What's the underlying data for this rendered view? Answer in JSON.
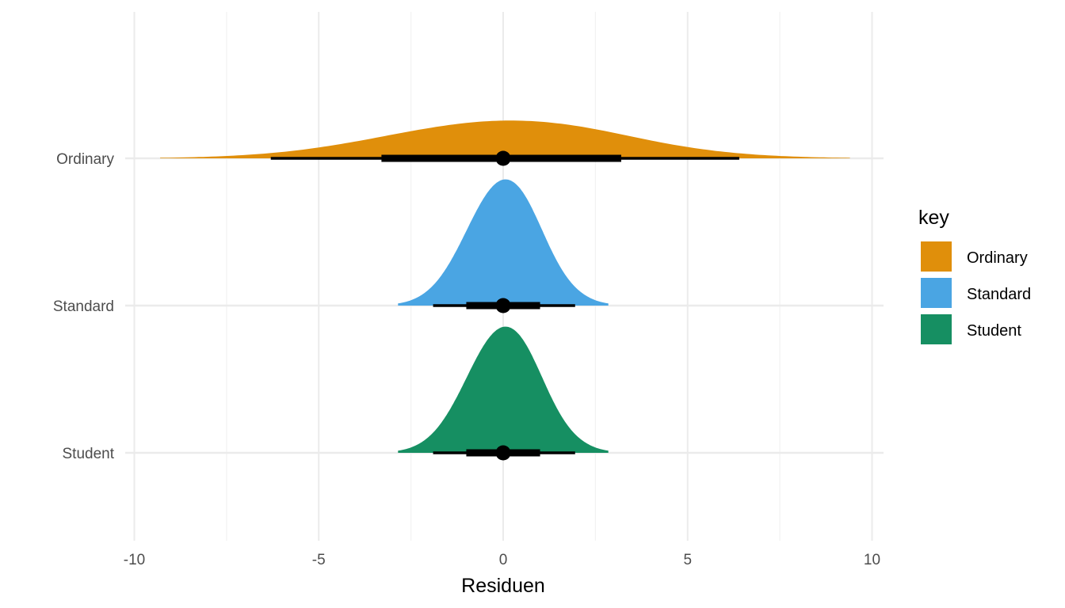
{
  "chart_data": {
    "type": "halfeye",
    "xlabel": "Residuen",
    "ylabel": "",
    "xlim": [
      -10.3,
      10.6
    ],
    "x_ticks": [
      -10,
      -5,
      0,
      5,
      10
    ],
    "x_tick_labels": [
      "-10",
      "-5",
      "0",
      "5",
      "10"
    ],
    "categories": [
      "Ordinary",
      "Standard",
      "Student"
    ],
    "grid": true,
    "legend": {
      "title": "key",
      "position": "right",
      "entries": [
        "Ordinary",
        "Standard",
        "Student"
      ]
    },
    "series": [
      {
        "name": "Ordinary",
        "color": "#E08F0B",
        "point": 0.0,
        "interval_66": [
          -3.3,
          3.2
        ],
        "interval_95": [
          -6.3,
          6.4
        ],
        "density_range": [
          -9.3,
          9.4
        ],
        "density_sd": 3.2
      },
      {
        "name": "Standard",
        "color": "#4AA5E3",
        "point": 0.0,
        "interval_66": [
          -1.0,
          1.0
        ],
        "interval_95": [
          -1.9,
          1.95
        ],
        "density_range": [
          -2.85,
          2.85
        ],
        "density_sd": 1.0
      },
      {
        "name": "Student",
        "color": "#168F62",
        "point": 0.0,
        "interval_66": [
          -1.0,
          1.0
        ],
        "interval_95": [
          -1.9,
          1.95
        ],
        "density_range": [
          -2.85,
          2.85
        ],
        "density_sd": 1.0
      }
    ]
  }
}
